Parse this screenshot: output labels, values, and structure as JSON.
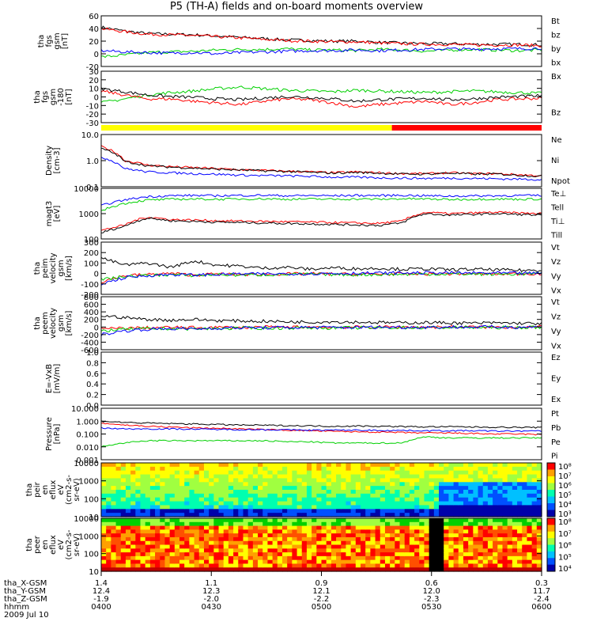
{
  "chart_data": {
    "type": "line",
    "title": "P5 (TH-A) fields and on-board moments overview",
    "colors": {
      "black": "#000000",
      "red": "#ff0000",
      "green": "#00d000",
      "blue": "#0000ff",
      "yellow": "#ffff00"
    },
    "panels": [
      {
        "ylabel": [
          "tha",
          "fgs",
          "gsm",
          "[nT]"
        ],
        "yticks": [
          "60",
          "40",
          "20",
          "0",
          "-20"
        ],
        "ylim": [
          -20,
          60
        ],
        "legend": [
          "Bt",
          "bz",
          "by",
          "bx"
        ],
        "series": [
          {
            "name": "Bt",
            "color": "black",
            "values": [
              42,
              36,
              32,
              31,
              30,
              28,
              26,
              24,
              22,
              21,
              20,
              20,
              18,
              17,
              16,
              16,
              15,
              15,
              15,
              14
            ]
          },
          {
            "name": "bz",
            "color": "red",
            "values": [
              40,
              35,
              31,
              30,
              29,
              27,
              25,
              23,
              21,
              20,
              19,
              19,
              17,
              16,
              15,
              15,
              14,
              14,
              14,
              13
            ]
          },
          {
            "name": "by",
            "color": "green",
            "values": [
              -5,
              -2,
              2,
              3,
              4,
              6,
              7,
              7,
              8,
              6,
              6,
              5,
              7,
              6,
              4,
              6,
              7,
              6,
              5,
              6
            ]
          },
          {
            "name": "bx",
            "color": "blue",
            "values": [
              5,
              3,
              2,
              1,
              2,
              0,
              2,
              3,
              4,
              5,
              5,
              6,
              5,
              6,
              7,
              8,
              7,
              8,
              8,
              9
            ]
          }
        ]
      },
      {
        "ylabel": [
          "tha",
          "fgs",
          "gsm",
          "-180",
          "[nT]"
        ],
        "yticks": [
          "30",
          "20",
          "10",
          "0",
          "-10",
          "-20",
          "-30"
        ],
        "ylim": [
          -35,
          30
        ],
        "legend": [
          "Bx",
          "Bz"
        ],
        "series": [
          {
            "name": "Bx",
            "color": "green",
            "values": [
              -10,
              -5,
              0,
              3,
              5,
              8,
              10,
              8,
              6,
              5,
              4,
              6,
              5,
              4,
              3,
              4,
              5,
              4,
              3,
              2
            ]
          },
          {
            "name": "Bz",
            "color": "red",
            "values": [
              5,
              0,
              -5,
              -5,
              -8,
              -10,
              -12,
              -8,
              -5,
              -6,
              -10,
              -15,
              -12,
              -10,
              -8,
              -12,
              -10,
              -6,
              -5,
              -4
            ]
          },
          {
            "name": "Bt",
            "color": "black",
            "values": [
              8,
              4,
              0,
              -2,
              -3,
              -5,
              -6,
              -4,
              -2,
              -3,
              -5,
              -8,
              -6,
              -5,
              -4,
              -6,
              -5,
              -3,
              -2,
              -1
            ]
          }
        ]
      },
      {
        "ylabel": [
          "Density",
          "[cm-3]"
        ],
        "yticks": [
          "10.0",
          "1.0",
          "0.1"
        ],
        "ylim": [
          0.1,
          40
        ],
        "log": true,
        "legend": [
          "Ne",
          "Ni",
          "Npot"
        ],
        "series": [
          {
            "name": "Ne",
            "color": "red",
            "values": [
              10,
              2,
              1.2,
              1.0,
              0.9,
              0.8,
              0.7,
              0.65,
              0.6,
              0.55,
              0.5,
              0.55,
              0.5,
              0.45,
              0.45,
              0.5,
              0.45,
              0.45,
              0.4,
              0.35
            ]
          },
          {
            "name": "Ni",
            "color": "black",
            "values": [
              8,
              1.8,
              1.1,
              0.95,
              0.85,
              0.75,
              0.68,
              0.62,
              0.58,
              0.52,
              0.48,
              0.52,
              0.48,
              0.43,
              0.43,
              0.48,
              0.43,
              0.43,
              0.38,
              0.33
            ]
          },
          {
            "name": "Npot",
            "color": "blue",
            "values": [
              3,
              0.8,
              0.55,
              0.5,
              0.45,
              0.42,
              0.38,
              0.36,
              0.35,
              0.33,
              0.3,
              0.3,
              0.28,
              0.27,
              0.26,
              0.27,
              0.26,
              0.25,
              0.24,
              0.23
            ]
          }
        ]
      },
      {
        "ylabel": [
          "magt3",
          "[eV]"
        ],
        "yticks": [
          "10000",
          "1000",
          "100"
        ],
        "ylim": [
          30,
          12000
        ],
        "log": true,
        "legend": [
          "Te⊥",
          "Tell",
          "Ti⊥",
          "Till"
        ],
        "series": [
          {
            "name": "Te⊥",
            "color": "red",
            "values": [
              80,
              150,
              400,
              300,
              280,
              260,
              250,
              240,
              230,
              220,
              210,
              200,
              190,
              250,
              700,
              600,
              650,
              700,
              650,
              600
            ]
          },
          {
            "name": "Tell",
            "color": "black",
            "values": [
              60,
              130,
              350,
              260,
              240,
              220,
              210,
              200,
              190,
              180,
              170,
              160,
              150,
              200,
              600,
              500,
              550,
              600,
              550,
              500
            ]
          },
          {
            "name": "Ti⊥",
            "color": "blue",
            "values": [
              1500,
              3000,
              4500,
              5000,
              5200,
              5000,
              5200,
              5300,
              5000,
              5100,
              5000,
              5200,
              5100,
              5300,
              5000,
              4800,
              4900,
              5000,
              5100,
              5200
            ]
          },
          {
            "name": "Till",
            "color": "green",
            "values": [
              800,
              2000,
              3000,
              3300,
              3400,
              3300,
              3400,
              3500,
              3300,
              3400,
              3300,
              3400,
              3300,
              3500,
              3400,
              3200,
              3300,
              3400,
              3300,
              3400
            ]
          }
        ]
      },
      {
        "ylabel": [
          "tha",
          "peim",
          "velocity",
          "gsm",
          "[km/s]"
        ],
        "yticks": [
          "300",
          "200",
          "100",
          "0",
          "-100",
          "-200"
        ],
        "ylim": [
          -200,
          300
        ],
        "legend": [
          "Vt",
          "Vz",
          "Vy",
          "Vx"
        ],
        "series": [
          {
            "name": "Vt",
            "color": "black",
            "values": [
              150,
              80,
              100,
              60,
              120,
              80,
              70,
              50,
              60,
              40,
              55,
              45,
              50,
              40,
              45,
              35,
              40,
              35,
              30,
              30
            ]
          },
          {
            "name": "Vz",
            "color": "red",
            "values": [
              -80,
              -20,
              -10,
              0,
              -15,
              -5,
              -10,
              -8,
              -5,
              -3,
              -5,
              -8,
              -6,
              -5,
              -4,
              -3,
              -4,
              -5,
              -3,
              -2
            ]
          },
          {
            "name": "Vy",
            "color": "green",
            "values": [
              -60,
              -30,
              -20,
              -10,
              -20,
              -10,
              -15,
              -12,
              -10,
              -8,
              -10,
              -12,
              -10,
              -8,
              -6,
              -5,
              -6,
              -8,
              -5,
              -4
            ]
          },
          {
            "name": "Vx",
            "color": "blue",
            "values": [
              -100,
              -40,
              -20,
              -10,
              -15,
              -10,
              -5,
              -5,
              -3,
              -2,
              0,
              2,
              3,
              5,
              6,
              5,
              4,
              3,
              2,
              1
            ]
          }
        ]
      },
      {
        "ylabel": [
          "tha",
          "peem",
          "velocity",
          "gsm",
          "[km/s]"
        ],
        "yticks": [
          "800",
          "600",
          "400",
          "200",
          "0",
          "-200",
          "-400",
          "-600"
        ],
        "ylim": [
          -600,
          800
        ],
        "legend": [
          "Vt",
          "Vz",
          "Vy",
          "Vx"
        ],
        "series": [
          {
            "name": "Vt",
            "color": "black",
            "values": [
              300,
              250,
              200,
              180,
              200,
              170,
              160,
              150,
              140,
              130,
              140,
              130,
              120,
              110,
              120,
              110,
              100,
              110,
              100,
              90
            ]
          },
          {
            "name": "Vz",
            "color": "red",
            "values": [
              -50,
              -30,
              -20,
              -10,
              -20,
              -10,
              -10,
              -5,
              -5,
              0,
              -5,
              -5,
              0,
              0,
              -5,
              0,
              0,
              -5,
              0,
              0
            ]
          },
          {
            "name": "Vy",
            "color": "green",
            "values": [
              -100,
              -60,
              -50,
              -40,
              -50,
              -40,
              -30,
              -30,
              -25,
              -20,
              -25,
              -20,
              -20,
              -15,
              -20,
              -15,
              -10,
              -15,
              -10,
              -10
            ]
          },
          {
            "name": "Vx",
            "color": "blue",
            "values": [
              -200,
              -100,
              -60,
              -40,
              -50,
              -30,
              -20,
              -20,
              -15,
              -10,
              -10,
              -10,
              -5,
              -5,
              -5,
              0,
              0,
              0,
              0,
              0
            ]
          }
        ]
      },
      {
        "ylabel": [
          "E=-VxB",
          "[mV/m]"
        ],
        "yticks": [
          "1.0",
          "0.8",
          "0.6",
          "0.4",
          "0.2",
          "0.0"
        ],
        "ylim": [
          0,
          1
        ],
        "legend": [
          "Ez",
          "Ey",
          "Ex"
        ],
        "series": []
      },
      {
        "ylabel": [
          "Pressure",
          "[nPa]"
        ],
        "yticks": [
          "10.000",
          "1.000",
          "0.100",
          "0.010",
          "0.001"
        ],
        "ylim": [
          0.001,
          10
        ],
        "log": true,
        "legend": [
          "Pt",
          "Pb",
          "Pe",
          "Pi"
        ],
        "series": [
          {
            "name": "Pt",
            "color": "black",
            "values": [
              1.0,
              0.8,
              0.7,
              0.65,
              0.6,
              0.55,
              0.5,
              0.48,
              0.45,
              0.43,
              0.4,
              0.42,
              0.4,
              0.38,
              0.36,
              0.37,
              0.35,
              0.34,
              0.33,
              0.32
            ]
          },
          {
            "name": "Pb",
            "color": "red",
            "values": [
              0.7,
              0.5,
              0.4,
              0.35,
              0.3,
              0.28,
              0.25,
              0.22,
              0.2,
              0.18,
              0.16,
              0.15,
              0.14,
              0.13,
              0.12,
              0.12,
              0.11,
              0.1,
              0.1,
              0.09
            ]
          },
          {
            "name": "Pe",
            "color": "green",
            "values": [
              0.01,
              0.02,
              0.03,
              0.03,
              0.03,
              0.03,
              0.03,
              0.03,
              0.025,
              0.025,
              0.02,
              0.02,
              0.02,
              0.02,
              0.06,
              0.05,
              0.05,
              0.05,
              0.05,
              0.05
            ]
          },
          {
            "name": "Pi",
            "color": "blue",
            "values": [
              0.3,
              0.25,
              0.25,
              0.25,
              0.24,
              0.23,
              0.22,
              0.22,
              0.21,
              0.2,
              0.2,
              0.2,
              0.19,
              0.19,
              0.18,
              0.18,
              0.18,
              0.17,
              0.17,
              0.17
            ]
          }
        ]
      },
      {
        "ylabel": [
          "tha",
          "peir",
          "en",
          "eflux",
          "eV",
          "(cm2-s-",
          "sr-eV)"
        ],
        "yticks": [
          "10000",
          "1000",
          "100",
          "10"
        ],
        "colorbar": [
          "10⁸",
          "10⁷",
          "10⁶",
          "10⁵",
          "10⁴",
          "10³"
        ],
        "type": "heatmap"
      },
      {
        "ylabel": [
          "tha",
          "peer",
          "en",
          "eflux",
          "eV",
          "(cm2-s-",
          "sr-eV)"
        ],
        "yticks": [
          "10000",
          "1000",
          "100",
          "10"
        ],
        "colorbar": [
          "10⁸",
          "10⁷",
          "10⁶",
          "10⁵",
          "10⁴"
        ],
        "type": "heatmap"
      }
    ],
    "x_axis": {
      "row_labels": [
        "tha_X-GSM",
        "tha_Y-GSM",
        "tha_Z-GSM",
        "hhmm",
        "2009 Jul 10"
      ],
      "ticks": [
        {
          "x": "1.4",
          "y": "12.4",
          "z": "-1.9",
          "t": "0400"
        },
        {
          "x": "1.1",
          "y": "12.3",
          "z": "-2.0",
          "t": "0430"
        },
        {
          "x": "0.9",
          "y": "12.1",
          "z": "-2.2",
          "t": "0500"
        },
        {
          "x": "0.6",
          "y": "12.0",
          "z": "-2.3",
          "t": "0530"
        },
        {
          "x": "0.3",
          "y": "11.7",
          "z": "-2.4",
          "t": "0600"
        }
      ]
    },
    "mode_bar": {
      "colors": [
        "yellow",
        "red"
      ],
      "switch_time": "0523"
    }
  }
}
